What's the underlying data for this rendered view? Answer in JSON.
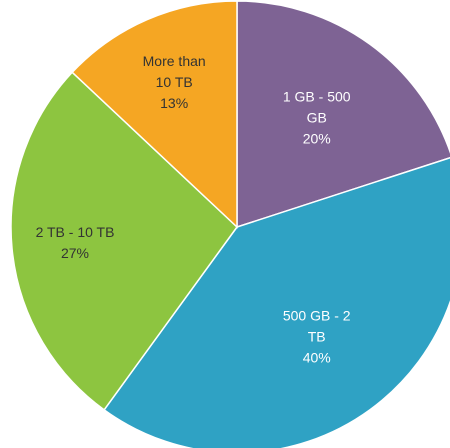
{
  "chart_data": {
    "type": "pie",
    "start_angle_deg": 0,
    "direction": "clockwise",
    "slices": [
      {
        "name": "1 GB - 500 GB",
        "value": 20,
        "color": "#7E6394",
        "label_lines": [
          "1 GB -  500",
          "GB",
          "20%"
        ],
        "label_color": "#ffffff"
      },
      {
        "name": "500 GB - 2 TB",
        "value": 40,
        "color": "#2FA2C4",
        "label_lines": [
          "500 GB - 2",
          "TB",
          "40%"
        ],
        "label_color": "#ffffff"
      },
      {
        "name": "2 TB - 10 TB",
        "value": 27,
        "color": "#8DC540",
        "label_lines": [
          "2 TB - 10 TB",
          "27%"
        ],
        "label_color": "#333333"
      },
      {
        "name": "More than 10 TB",
        "value": 13,
        "color": "#F5A623",
        "label_lines": [
          "More than",
          "10 TB",
          "13%"
        ],
        "label_color": "#333333"
      }
    ]
  }
}
